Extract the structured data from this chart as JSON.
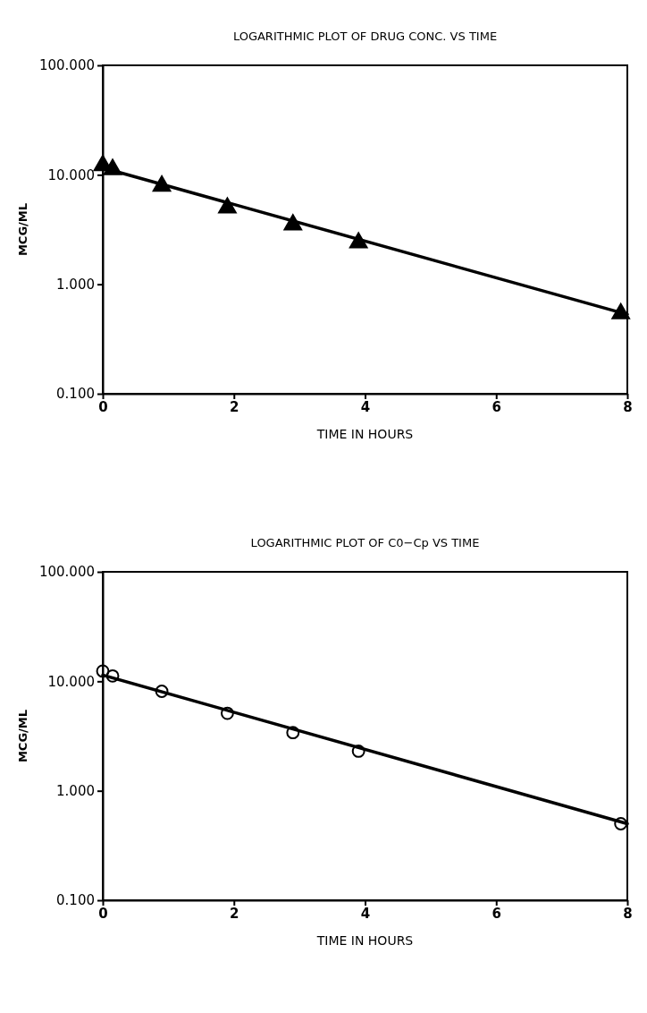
{
  "chart_data": [
    {
      "type": "scatter",
      "title": "LOGARITHMIC PLOT OF DRUG CONC. VS TIME",
      "xlabel": "TIME IN HOURS",
      "ylabel": "MCG/ML",
      "log": "y",
      "grid": false,
      "xlim": [
        0,
        8
      ],
      "xticks": [
        0,
        2,
        4,
        6,
        8
      ],
      "ylim": [
        0.1,
        100
      ],
      "yticks": [
        {
          "value": 0.1,
          "label": "0.100"
        },
        {
          "value": 1,
          "label": "1.000"
        },
        {
          "value": 10,
          "label": "10.000"
        },
        {
          "value": 100,
          "label": "100.000"
        }
      ],
      "series": [
        {
          "marker": "triangle",
          "color": "#000000",
          "x": [
            0,
            0.15,
            0.9,
            1.9,
            2.9,
            3.9,
            7.9
          ],
          "values": [
            12.2,
            11.2,
            7.9,
            5.0,
            3.5,
            2.4,
            0.54
          ]
        },
        {
          "type": "line",
          "marker": "none",
          "line_style": "solid",
          "color": "#000000",
          "x": [
            0,
            8
          ],
          "values": [
            11.6,
            0.53
          ]
        }
      ]
    },
    {
      "type": "scatter",
      "title": "LOGARITHMIC PLOT OF C0−Cp VS TIME",
      "xlabel": "TIME IN HOURS",
      "ylabel": "MCG/ML",
      "log": "y",
      "grid": false,
      "xlim": [
        0,
        8
      ],
      "xticks": [
        0,
        2,
        4,
        6,
        8
      ],
      "ylim": [
        0.1,
        100
      ],
      "yticks": [
        {
          "value": 0.1,
          "label": "0.100"
        },
        {
          "value": 1,
          "label": "1.000"
        },
        {
          "value": 10,
          "label": "10.000"
        },
        {
          "value": 100,
          "label": "100.000"
        }
      ],
      "series": [
        {
          "marker": "circle",
          "color": "#000000",
          "x": [
            0,
            0.15,
            0.9,
            1.9,
            2.9,
            3.9,
            7.9
          ],
          "values": [
            12.4,
            11.2,
            8.1,
            5.1,
            3.4,
            2.3,
            0.5
          ]
        },
        {
          "type": "line",
          "marker": "none",
          "line_style": "solid",
          "color": "#000000",
          "x": [
            0,
            8
          ],
          "values": [
            11.4,
            0.5
          ]
        }
      ]
    }
  ]
}
